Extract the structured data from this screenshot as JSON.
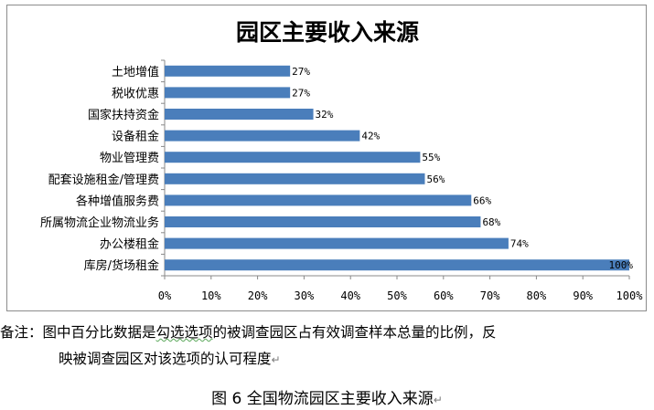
{
  "chart_data": {
    "type": "bar",
    "orientation": "horizontal",
    "title": "园区主要收入来源",
    "categories": [
      "土地增值",
      "税收优惠",
      "国家扶持资金",
      "设备租金",
      "物业管理费",
      "配套设施租金/管理费",
      "各种增值服务费",
      "所属物流企业物流业务",
      "办公楼租金",
      "库房/货场租金"
    ],
    "values": [
      27,
      27,
      32,
      42,
      55,
      56,
      66,
      68,
      74,
      100
    ],
    "value_labels": [
      "27%",
      "27%",
      "32%",
      "42%",
      "55%",
      "56%",
      "66%",
      "68%",
      "74%",
      "100%"
    ],
    "xlim": [
      0,
      100
    ],
    "xticks": [
      "0%",
      "10%",
      "20%",
      "30%",
      "40%",
      "50%",
      "60%",
      "70%",
      "80%",
      "90%",
      "100%"
    ],
    "bar_color": "#4a7ebb",
    "grid": false,
    "legend": false
  },
  "note": {
    "prefix": "备注：图中百分比数据是",
    "underlined": "勾选选项",
    "rest_line1": "的被调查园区占有效调查样本总量的比例，反",
    "line2": "映被调查园区对该选项的认可程度",
    "mark": "↵"
  },
  "caption": {
    "text": "图 6  全国物流园区主要收入来源",
    "mark": "↵"
  }
}
